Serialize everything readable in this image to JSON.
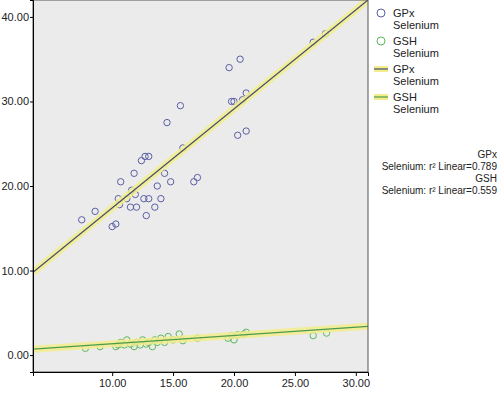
{
  "chart_data": {
    "type": "scatter",
    "legend": "right",
    "grid": false,
    "xlim": [
      3.5,
      31
    ],
    "xticks": [
      {
        "value": 10,
        "label": "10.00"
      },
      {
        "value": 15,
        "label": "15.00"
      },
      {
        "value": 20,
        "label": "20.00"
      },
      {
        "value": 25,
        "label": "25.00"
      },
      {
        "value": 30,
        "label": "30.00"
      }
    ],
    "ylim": [
      -2,
      42
    ],
    "yticks": [
      {
        "value": 0,
        "label": "0.00"
      },
      {
        "value": 10,
        "label": "10.00"
      },
      {
        "value": 20,
        "label": "20.00"
      },
      {
        "value": 30,
        "label": "30.00"
      },
      {
        "value": 40,
        "label": "40.00"
      }
    ],
    "series": [
      {
        "name": "GPx Selenium",
        "type": "scatter",
        "marker": "circle",
        "color": "#5b5fa6",
        "x": [
          7.5,
          8.6,
          10.0,
          10.3,
          10.5,
          10.6,
          10.7,
          11.2,
          11.5,
          11.6,
          11.8,
          11.9,
          12.0,
          12.4,
          12.6,
          12.7,
          12.8,
          13.0,
          13.0,
          13.5,
          13.7,
          14.0,
          14.3,
          14.5,
          14.8,
          15.6,
          15.8,
          16.7,
          17.0,
          19.6,
          19.8,
          20.0,
          20.5,
          20.3,
          20.7,
          21.0,
          21.0,
          26.5,
          27.5
        ],
        "values": [
          16.0,
          17.0,
          15.2,
          15.5,
          18.5,
          17.8,
          20.5,
          18.5,
          17.5,
          19.5,
          21.5,
          19.0,
          17.5,
          23.0,
          18.5,
          23.5,
          16.5,
          23.5,
          18.5,
          17.5,
          20.0,
          18.5,
          21.5,
          27.5,
          20.5,
          29.5,
          24.5,
          20.5,
          21.0,
          34.0,
          30.0,
          30.0,
          35.0,
          26.0,
          30.2,
          31.0,
          26.5,
          37.0,
          38.0
        ]
      },
      {
        "name": "GSH Selenium",
        "type": "scatter",
        "marker": "circle",
        "color": "#5cb85c",
        "x": [
          7.8,
          9.0,
          10.3,
          10.5,
          10.7,
          11.0,
          11.2,
          11.5,
          11.8,
          12.0,
          12.3,
          12.5,
          12.8,
          13.0,
          13.3,
          13.5,
          13.7,
          14.0,
          14.3,
          14.6,
          15.0,
          15.5,
          15.8,
          17.0,
          19.5,
          19.8,
          20.0,
          20.3,
          20.8,
          21.0,
          26.5,
          27.6
        ],
        "values": [
          0.8,
          1.0,
          1.0,
          1.2,
          1.5,
          1.2,
          1.8,
          1.3,
          1.0,
          1.5,
          1.2,
          1.8,
          1.3,
          1.5,
          1.0,
          1.8,
          1.5,
          2.0,
          1.5,
          2.2,
          1.8,
          2.5,
          1.7,
          2.0,
          2.0,
          2.3,
          1.8,
          2.4,
          2.5,
          2.7,
          2.3,
          2.6
        ]
      },
      {
        "name": "GPx Selenium",
        "type": "line",
        "line_style": "solid",
        "color": "#3d4a6b",
        "x": [
          3.5,
          31
        ],
        "values": [
          9.8,
          42.0
        ]
      },
      {
        "name": "GSH Selenium",
        "type": "line",
        "line_style": "solid",
        "color": "#4c9a4c",
        "x": [
          3.5,
          31
        ],
        "values": [
          0.7,
          3.4
        ]
      }
    ],
    "annotations": [
      "GPx",
      "Selenium: r² Linear=0.789",
      "GSH",
      "Selenium: r² Linear=0.559"
    ]
  }
}
